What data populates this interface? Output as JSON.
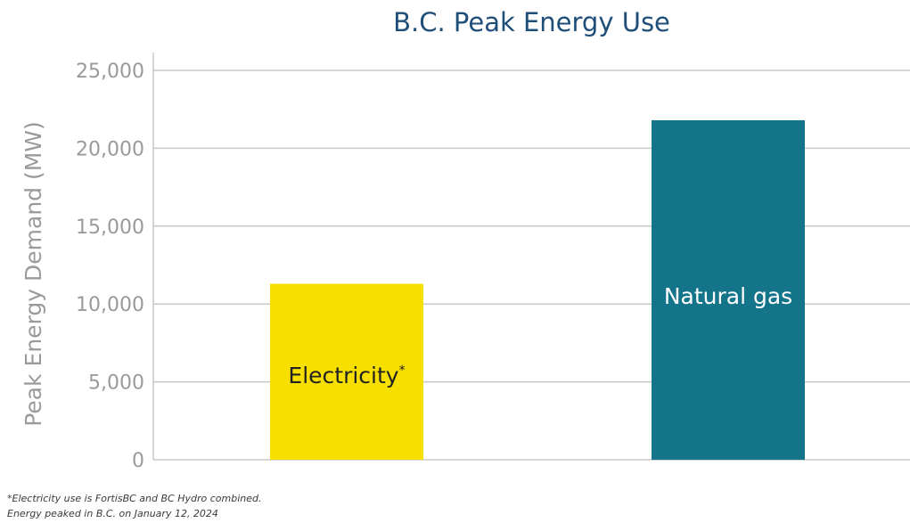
{
  "chart_data": {
    "type": "bar",
    "title": "B.C. Peak Energy Use",
    "ylabel": "Peak Energy Demand (MW)",
    "xlabel": "",
    "categories": [
      "Electricity*",
      "Natural gas"
    ],
    "values": [
      11300,
      21800
    ],
    "ylim": [
      0,
      25000
    ],
    "yticks": [
      0,
      5000,
      10000,
      15000,
      20000,
      25000
    ],
    "ytick_labels": [
      "0",
      "5,000",
      "10,000",
      "15,000",
      "20,000",
      "25,000"
    ],
    "bar_labels": {
      "electricity": {
        "text": "Electricity",
        "sup": "*"
      },
      "natural_gas": {
        "text": "Natural gas",
        "sup": ""
      }
    },
    "colors": {
      "electricity": "#f7e000",
      "natural_gas": "#13748a",
      "grid": "#c8c8c8",
      "title": "#1f4e79",
      "axis_text": "#9a9a9a"
    },
    "grid": true,
    "legend": "none"
  },
  "footnotes": {
    "line1": "*Electricity use is FortisBC and BC Hydro combined.",
    "line2": "Energy peaked in B.C. on January 12, 2024"
  }
}
